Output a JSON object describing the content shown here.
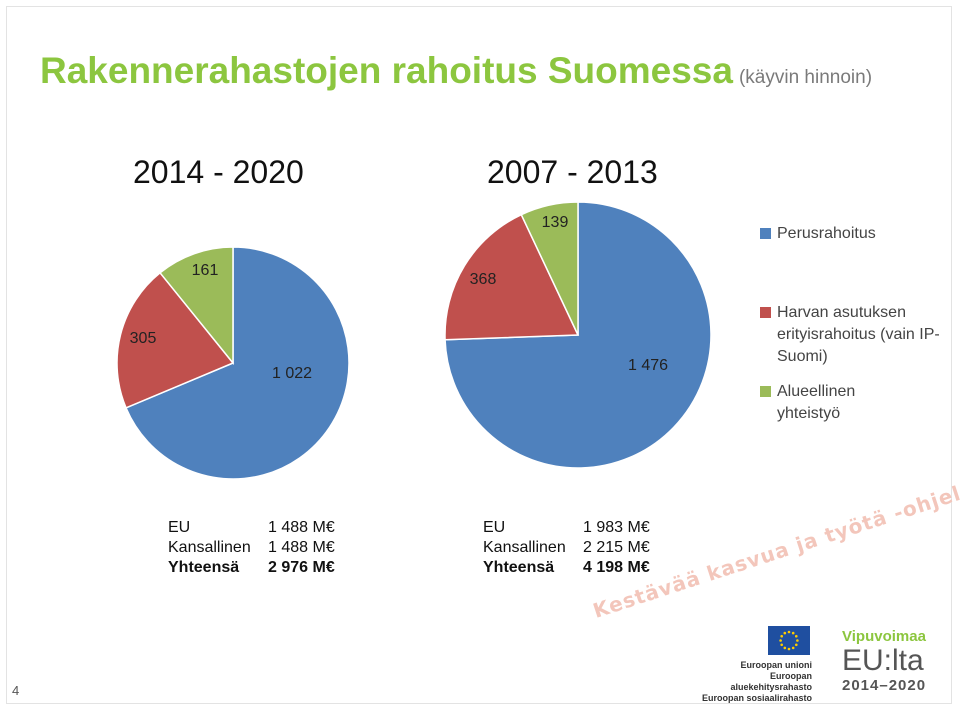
{
  "title": "Rakennerahastojen rahoitus Suomessa",
  "subtitle": "(käyvin hinnoin)",
  "chart_data": [
    {
      "type": "pie",
      "title": "2014 - 2020",
      "categories": [
        "Perusrahoitus",
        "Harvan asutuksen erityisrahoitus (vain IP-Suomi)",
        "Alueellinen yhteistyö"
      ],
      "values": [
        1022,
        305,
        161
      ],
      "value_labels": [
        "1 022",
        "305",
        "161"
      ],
      "totals": [
        {
          "label": "EU",
          "value": "1 488 M€",
          "bold": false
        },
        {
          "label": "Kansallinen",
          "value": "1 488 M€",
          "bold": false
        },
        {
          "label": "Yhteensä",
          "value": "2 976 M€",
          "bold": true
        }
      ]
    },
    {
      "type": "pie",
      "title": "2007 - 2013",
      "categories": [
        "Perusrahoitus",
        "Harvan asutuksen erityisrahoitus (vain IP-Suomi)",
        "Alueellinen yhteistyö"
      ],
      "values": [
        1476,
        368,
        139
      ],
      "value_labels": [
        "1 476",
        "368",
        "139"
      ],
      "totals": [
        {
          "label": "EU",
          "value": "1 983 M€",
          "bold": false
        },
        {
          "label": "Kansallinen",
          "value": "2 215 M€",
          "bold": false
        },
        {
          "label": "Yhteensä",
          "value": "4 198 M€",
          "bold": true
        }
      ]
    }
  ],
  "legend": {
    "placement": "right",
    "items": [
      {
        "label": "Perusrahoitus",
        "color": "#4f81bd"
      },
      {
        "label": "Harvan asutuksen erityisrahoitus (vain IP-Suomi)",
        "color": "#c0504d"
      },
      {
        "label": "Alueellinen yhteistyö",
        "color": "#9bbb59"
      }
    ]
  },
  "footer": {
    "slogan": "Kestävää kasvua ja työtä -ohjelma",
    "eu_lines": [
      "Euroopan unioni",
      "Euroopan aluekehitysrahasto",
      "Euroopan sosiaalirahasto"
    ],
    "brand_top": "Vipuvoimaa",
    "brand_mid": "EU:lta",
    "brand_years": "2014–2020",
    "page_number": "4"
  }
}
